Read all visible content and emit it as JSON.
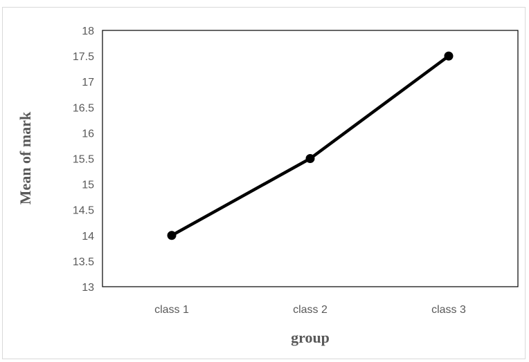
{
  "chart_data": {
    "type": "line",
    "title": "",
    "xlabel": "group",
    "ylabel": "Mean of mark",
    "categories": [
      "class 1",
      "class 2",
      "class 3"
    ],
    "series": [
      {
        "values": [
          14,
          15.5,
          17.5
        ]
      }
    ],
    "ylim": [
      13,
      18
    ],
    "y_ticks": [
      "13",
      "13.5",
      "14",
      "14.5",
      "15",
      "15.5",
      "16",
      "16.5",
      "17",
      "17.5",
      "18"
    ],
    "grid": false,
    "legend": "none",
    "colors": {
      "line": "#000000",
      "marker": "#000000",
      "axis": "#bfbfbf",
      "text": "#595959"
    }
  }
}
